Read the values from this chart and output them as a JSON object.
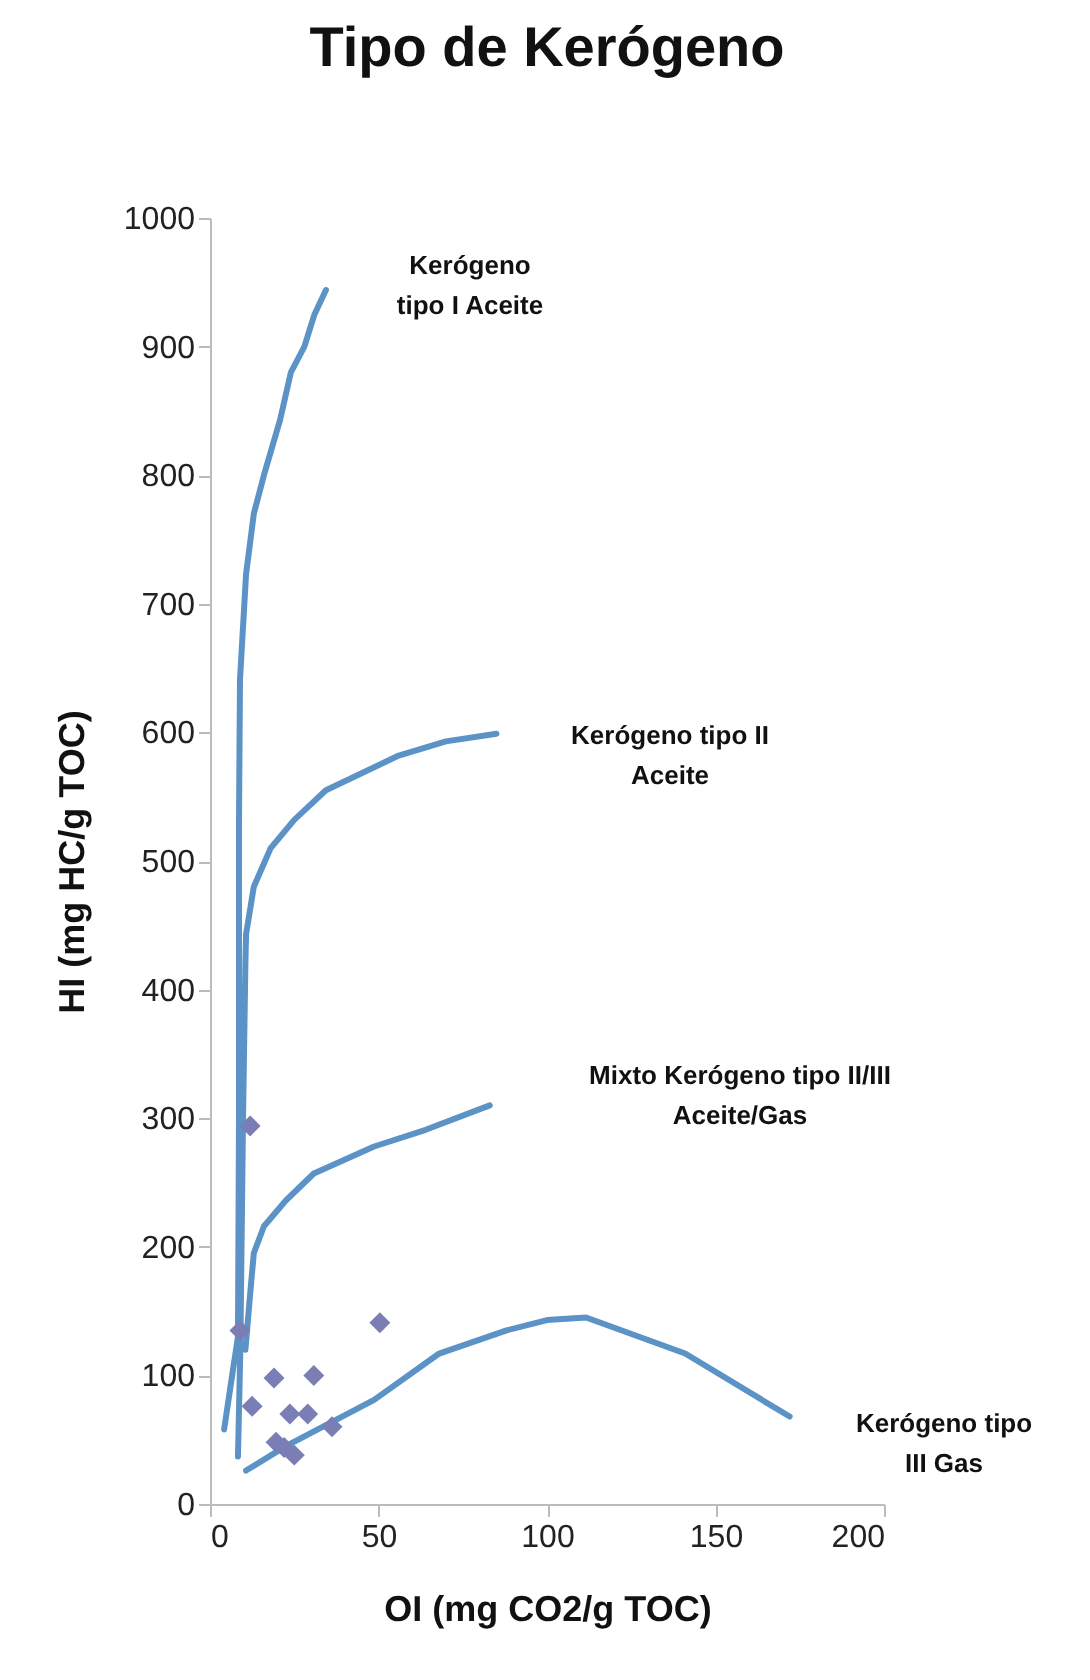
{
  "chart_data": {
    "type": "scatter",
    "title": "Tipo de Kerógeno",
    "xlabel": "OI (mg CO2/g TOC)",
    "ylabel": "HI (mg HC/g TOC)",
    "xlim": [
      0,
      200
    ],
    "ylim": [
      0,
      1000
    ],
    "xticks": [
      0,
      50,
      100,
      150,
      200
    ],
    "yticks": [
      0,
      100,
      200,
      300,
      400,
      500,
      600,
      700,
      800,
      900,
      {
        "value": 1000,
        "label": "1000"
      }
    ],
    "grid": false,
    "series": [
      {
        "type": "line",
        "color": "#5b93c6",
        "line_style": "solid",
        "marker": "none",
        "x": [
          4.2,
          6,
          8.3,
          8.6,
          8.6,
          8.9,
          10.7,
          13,
          16,
          20.8,
          24,
          28,
          31,
          34.4
        ],
        "values": [
          58,
          90,
          130,
          300,
          530,
          641,
          723,
          770,
          800,
          843,
          880,
          900,
          925,
          944
        ]
      },
      {
        "type": "line",
        "color": "#5b93c6",
        "line_style": "solid",
        "marker": "none",
        "x": [
          8.3,
          9,
          9.8,
          10.5,
          10.7,
          13,
          18,
          25,
          34.4,
          56,
          70,
          85
        ],
        "values": [
          37,
          120,
          300,
          420,
          443,
          480,
          510,
          532,
          555,
          582,
          593,
          599
        ]
      },
      {
        "type": "line",
        "color": "#5b93c6",
        "line_style": "solid",
        "marker": "none",
        "x": [
          10.5,
          11.9,
          13,
          16,
          22.5,
          30.8,
          48.7,
          64,
          83
        ],
        "values": [
          120,
          163,
          195,
          216,
          236,
          257,
          278,
          291,
          310
        ]
      },
      {
        "type": "line",
        "color": "#5b93c6",
        "line_style": "solid",
        "marker": "none",
        "x": [
          10.7,
          22.5,
          48.7,
          68,
          88,
          100,
          111.6,
          141,
          172
        ],
        "values": [
          26,
          45,
          81,
          117,
          135,
          143,
          145,
          117,
          68
        ]
      },
      {
        "color": "#7b7db5",
        "marker": "diamond",
        "x": [
          11.9,
          8.9,
          50.4,
          19,
          30.8,
          12.5,
          23.7,
          29,
          36.2,
          19.6,
          22,
          25
        ],
        "values": [
          294,
          135,
          141,
          98,
          100,
          76,
          70,
          70,
          60,
          48,
          44,
          38
        ]
      }
    ],
    "annotations": [
      "Kerógeno\ntipo I Aceite",
      "Kerógeno tipo II\nAceite",
      "Mixto Kerógeno tipo II/III\nAceite/Gas",
      "Kerógeno tipo\nIII Gas"
    ]
  }
}
